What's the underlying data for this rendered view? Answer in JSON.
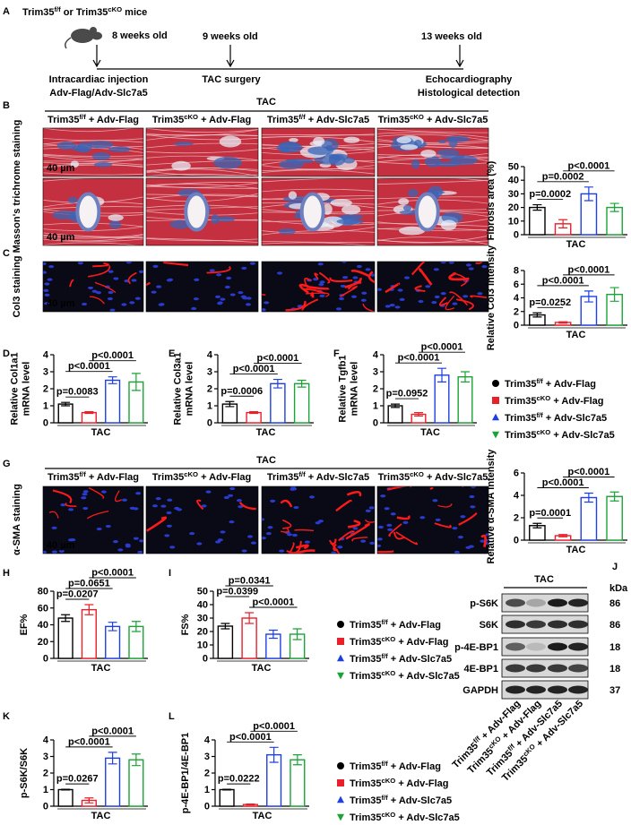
{
  "panel_labels": [
    "A",
    "B",
    "C",
    "D",
    "E",
    "F",
    "G",
    "H",
    "I",
    "J",
    "K",
    "L"
  ],
  "groups": [
    {
      "label": [
        "Trim35",
        {
          "sup": "f/f"
        },
        " + Adv-Flag"
      ],
      "color": "#000000",
      "marker": "circle"
    },
    {
      "label": [
        "Trim35",
        {
          "sup": "cKO"
        },
        " + Adv-Flag"
      ],
      "color": "#e8202a",
      "marker": "square"
    },
    {
      "label": [
        "Trim35",
        {
          "sup": "f/f"
        },
        " + Adv-Slc7a5"
      ],
      "color": "#1f3fe0",
      "marker": "triangle-up"
    },
    {
      "label": [
        "Trim35",
        {
          "sup": "cKO"
        },
        " + Adv-Slc7a5"
      ],
      "color": "#1aa336",
      "marker": "triangle-down"
    }
  ],
  "timeline": {
    "title": [
      "Trim35",
      {
        "sup": "f/f"
      },
      " or Trim35",
      {
        "sup": "cKO"
      },
      " mice"
    ],
    "ages": [
      "8 weeks old",
      "9 weeks old",
      "13 weeks old"
    ],
    "events": [
      [
        "Intracardiac injection",
        "Adv-Flag/Adv-Slc7a5"
      ],
      [
        "TAC surgery"
      ],
      [
        "Echocardiography",
        "Histological detection"
      ]
    ]
  },
  "image_panels": [
    {
      "panel": "B",
      "title": "TAC",
      "side_label": "Masson's trichrome staining"
    },
    {
      "panel": "C",
      "side_label": "Col3 staining"
    },
    {
      "panel": "G",
      "title": "TAC",
      "side_label": "α-SMA staining"
    }
  ],
  "scale_bar": "40 µm",
  "blot": {
    "title": "TAC",
    "unit_label": "kDa",
    "rows": [
      {
        "name": "p-S6K",
        "kda": 86
      },
      {
        "name": "S6K",
        "kda": 86
      },
      {
        "name": "p-4E-BP1",
        "kda": 18
      },
      {
        "name": "4E-BP1",
        "kda": 18
      },
      {
        "name": "GAPDH",
        "kda": 37
      }
    ]
  },
  "chart_data": [
    {
      "type": "bar",
      "panel": "B",
      "ylabel": [
        "Fibrosis area (%)"
      ],
      "xlabel": "TAC",
      "categories": [
        null,
        null,
        null,
        null
      ],
      "values": [
        20,
        8,
        30,
        20
      ],
      "errors": [
        2,
        3,
        5,
        3
      ],
      "ylim": [
        0,
        50
      ],
      "yticks": [
        0,
        10,
        20,
        30,
        40,
        50
      ],
      "comparisons": [
        "p=0.0002",
        "p=0.0002",
        "p<0.0001"
      ]
    },
    {
      "type": "bar",
      "panel": "C",
      "ylabel": [
        "Relative Col3 intensity"
      ],
      "xlabel": "TAC",
      "categories": [
        null,
        null,
        null,
        null
      ],
      "values": [
        1.5,
        0.4,
        4.2,
        4.5
      ],
      "errors": [
        0.3,
        0.1,
        0.8,
        1.0
      ],
      "ylim": [
        0,
        8
      ],
      "yticks": [
        0,
        2,
        4,
        6,
        8
      ],
      "comparisons": [
        "p=0.0252",
        "p<0.0001",
        "p<0.0001"
      ]
    },
    {
      "type": "bar",
      "panel": "D",
      "ylabel": [
        "Relative Col1a1",
        "mRNA level"
      ],
      "xlabel": "TAC",
      "categories": [
        null,
        null,
        null,
        null
      ],
      "values": [
        1.1,
        0.6,
        2.5,
        2.4
      ],
      "errors": [
        0.1,
        0.05,
        0.2,
        0.5
      ],
      "ylim": [
        0,
        4
      ],
      "yticks": [
        0,
        1,
        2,
        3,
        4
      ],
      "comparisons": [
        "p=0.0083",
        "p<0.0001",
        "p<0.0001"
      ]
    },
    {
      "type": "bar",
      "panel": "E",
      "ylabel": [
        "Relative Col3a1",
        "mRNA level"
      ],
      "xlabel": "TAC",
      "categories": [
        null,
        null,
        null,
        null
      ],
      "values": [
        1.1,
        0.6,
        2.3,
        2.3
      ],
      "errors": [
        0.15,
        0.05,
        0.25,
        0.2
      ],
      "ylim": [
        0,
        4
      ],
      "yticks": [
        0,
        1,
        2,
        3,
        4
      ],
      "comparisons": [
        "p=0.0006",
        "p<0.0001",
        "p<0.0001"
      ]
    },
    {
      "type": "bar",
      "panel": "F",
      "ylabel": [
        "Relative Tgfb1",
        "mRNA level"
      ],
      "xlabel": "TAC",
      "categories": [
        null,
        null,
        null,
        null
      ],
      "values": [
        1.0,
        0.5,
        2.8,
        2.7
      ],
      "errors": [
        0.1,
        0.1,
        0.4,
        0.3
      ],
      "ylim": [
        0,
        4
      ],
      "yticks": [
        0,
        1,
        2,
        3,
        4
      ],
      "comparisons": [
        "p=0.0952",
        "p<0.0001",
        "p<0.0001"
      ]
    },
    {
      "type": "bar",
      "panel": "G",
      "ylabel": [
        "Relative α-SMA intensity"
      ],
      "xlabel": "TAC",
      "categories": [
        null,
        null,
        null,
        null
      ],
      "values": [
        1.3,
        0.4,
        3.8,
        3.9
      ],
      "errors": [
        0.2,
        0.1,
        0.4,
        0.4
      ],
      "ylim": [
        0,
        6
      ],
      "yticks": [
        0,
        2,
        4,
        6
      ],
      "comparisons": [
        "p=0.0001",
        "p<0.0001",
        "p<0.0001"
      ]
    },
    {
      "type": "bar",
      "panel": "H",
      "ylabel": [
        "EF%"
      ],
      "xlabel": "TAC",
      "categories": [
        null,
        null,
        null,
        null
      ],
      "values": [
        48,
        58,
        38,
        38
      ],
      "errors": [
        4,
        6,
        5,
        6
      ],
      "ylim": [
        0,
        80
      ],
      "yticks": [
        0,
        20,
        40,
        60,
        80
      ],
      "comparisons": [
        "p=0.0207",
        "p=0.0651",
        "p<0.0001"
      ]
    },
    {
      "type": "bar",
      "panel": "I",
      "ylabel": [
        "FS%"
      ],
      "xlabel": "TAC",
      "categories": [
        null,
        null,
        null,
        null
      ],
      "values": [
        24,
        30,
        18,
        18
      ],
      "errors": [
        2,
        4,
        3,
        4
      ],
      "ylim": [
        0,
        50
      ],
      "yticks": [
        0,
        10,
        20,
        30,
        40,
        50
      ],
      "comparisons": [
        "p<0.0001",
        "p=0.0399",
        "p=0.0341"
      ]
    },
    {
      "type": "bar",
      "panel": "K",
      "ylabel": [
        "p-S6K/S6K"
      ],
      "xlabel": "TAC",
      "categories": [
        null,
        null,
        null,
        null
      ],
      "values": [
        1.0,
        0.35,
        2.9,
        2.8
      ],
      "errors": [
        0.02,
        0.15,
        0.35,
        0.35
      ],
      "ylim": [
        0,
        4
      ],
      "yticks": [
        0,
        1,
        2,
        3,
        4
      ],
      "comparisons": [
        "p=0.0267",
        "p<0.0001",
        "p<0.0001"
      ]
    },
    {
      "type": "bar",
      "panel": "L",
      "ylabel": [
        "p-4E-BP1/4E-BP1"
      ],
      "xlabel": "TAC",
      "categories": [
        null,
        null,
        null,
        null
      ],
      "values": [
        1.0,
        0.1,
        3.1,
        2.8
      ],
      "errors": [
        0.02,
        0.03,
        0.45,
        0.3
      ],
      "ylim": [
        0,
        4
      ],
      "yticks": [
        0,
        1,
        2,
        3,
        4
      ],
      "comparisons": [
        "p=0.0222",
        "p<0.0001",
        "p<0.0001"
      ]
    }
  ]
}
